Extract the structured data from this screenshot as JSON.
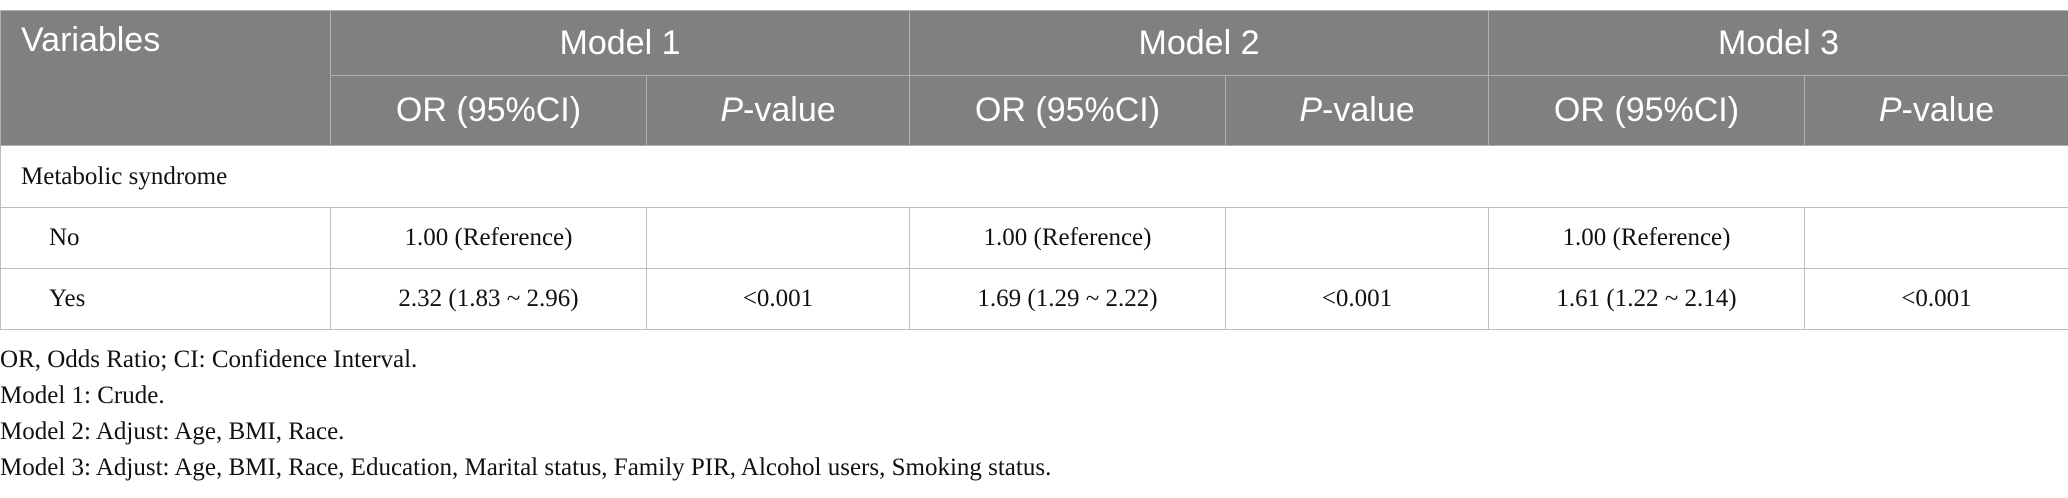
{
  "header": {
    "variables": "Variables",
    "models": [
      {
        "name": "Model 1",
        "or": "OR (95%CI)",
        "p": [
          "P",
          "-value"
        ]
      },
      {
        "name": "Model 2",
        "or": "OR (95%CI)",
        "p": [
          "P",
          "-value"
        ]
      },
      {
        "name": "Model 3",
        "or": "OR (95%CI)",
        "p": [
          "P",
          "-value"
        ]
      }
    ]
  },
  "table": {
    "section": "Metabolic syndrome",
    "rows": [
      {
        "label": "No",
        "or": [
          "1.00 (Reference)",
          "1.00 (Reference)",
          "1.00 (Reference)"
        ]
      },
      {
        "label": "Yes",
        "or": [
          "2.32 (1.83 ~ 2.96)",
          "1.69 (1.29 ~ 2.22)",
          "1.61 (1.22 ~ 2.14)"
        ],
        "p": [
          "<0.001",
          "<0.001",
          "<0.001"
        ]
      }
    ]
  },
  "notes": [
    "OR, Odds Ratio; CI: Confidence Interval.",
    "Model 1: Crude.",
    "Model 2: Adjust: Age, BMI, Race.",
    "Model 3: Adjust: Age, BMI, Race, Education, Marital status, Family PIR, Alcohol users, Smoking status."
  ]
}
